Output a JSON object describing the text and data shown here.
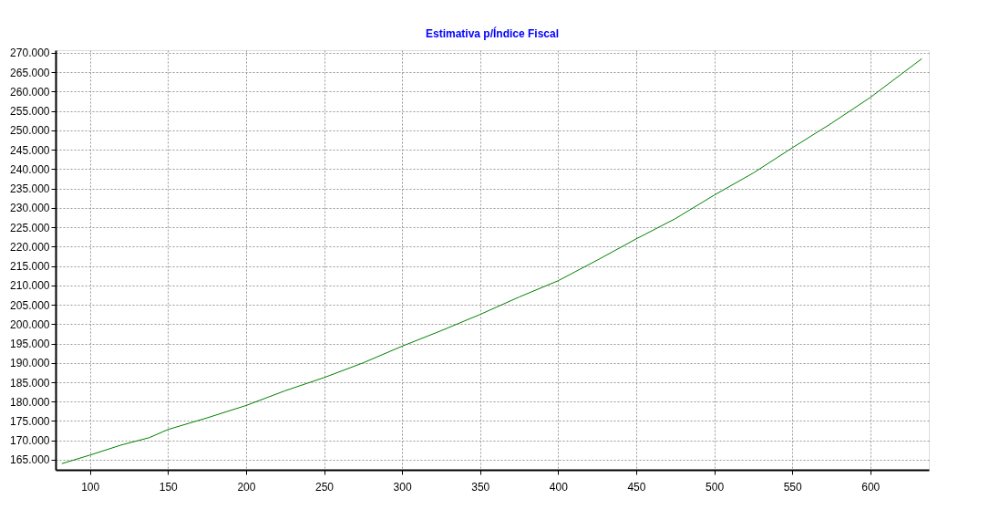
{
  "chart_data": {
    "type": "line",
    "title": "Estimativa p/Índice Fiscal",
    "x": [
      82,
      100,
      120,
      138,
      150,
      175,
      200,
      225,
      250,
      275,
      300,
      325,
      350,
      375,
      400,
      425,
      450,
      475,
      500,
      525,
      550,
      575,
      600,
      633
    ],
    "series": [
      {
        "color": "#008000",
        "values": [
          164000,
          166200,
          168800,
          170700,
          172800,
          175800,
          179000,
          182800,
          186200,
          190000,
          194300,
          198300,
          202500,
          207000,
          211200,
          216500,
          222000,
          227200,
          233300,
          239000,
          245500,
          251800,
          258500,
          268500
        ]
      }
    ],
    "xlim": [
      78,
      637.5
    ],
    "xticks": [
      100,
      150,
      200,
      250,
      300,
      350,
      400,
      450,
      500,
      550,
      600
    ],
    "ylim": [
      162400,
      270700
    ],
    "yticks": [
      {
        "value": 165000,
        "label": "165.000"
      },
      {
        "value": 170000,
        "label": "170.000"
      },
      {
        "value": 175000,
        "label": "175.000"
      },
      {
        "value": 180000,
        "label": "180.000"
      },
      {
        "value": 185000,
        "label": "185.000"
      },
      {
        "value": 190000,
        "label": "190.000"
      },
      {
        "value": 195000,
        "label": "195.000"
      },
      {
        "value": 200000,
        "label": "200.000"
      },
      {
        "value": 205000,
        "label": "205.000"
      },
      {
        "value": 210000,
        "label": "210.000"
      },
      {
        "value": 215000,
        "label": "215.000"
      },
      {
        "value": 220000,
        "label": "220.000"
      },
      {
        "value": 225000,
        "label": "225.000"
      },
      {
        "value": 230000,
        "label": "230.000"
      },
      {
        "value": 235000,
        "label": "235.000"
      },
      {
        "value": 240000,
        "label": "240.000"
      },
      {
        "value": 245000,
        "label": "245.000"
      },
      {
        "value": 250000,
        "label": "250.000"
      },
      {
        "value": 255000,
        "label": "255.000"
      },
      {
        "value": 260000,
        "label": "260.000"
      },
      {
        "value": 265000,
        "label": "265.000"
      },
      {
        "value": 270000,
        "label": "270.000"
      }
    ],
    "grid": true,
    "legend": false,
    "marker": "none",
    "line_style": "solid"
  }
}
